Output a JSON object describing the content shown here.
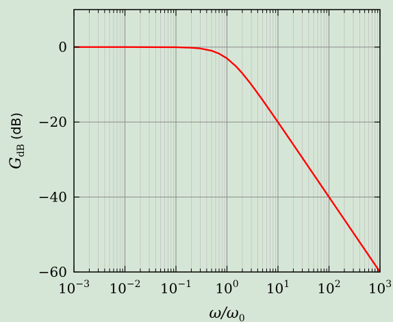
{
  "chart_data": {
    "type": "line",
    "title": "",
    "xlabel": {
      "main": "ω/ω",
      "sub": "0"
    },
    "ylabel": {
      "main": "G",
      "sub": "dB",
      "unit": "(dB)"
    },
    "xscale": "log",
    "xlim": [
      0.001,
      1000
    ],
    "ylim": [
      -60,
      10
    ],
    "grid": true,
    "legend": "none",
    "x_ticks": [
      {
        "value": 0.001,
        "base": "10",
        "exp": "−3"
      },
      {
        "value": 0.01,
        "base": "10",
        "exp": "−2"
      },
      {
        "value": 0.1,
        "base": "10",
        "exp": "−1"
      },
      {
        "value": 1,
        "base": "10",
        "exp": "0"
      },
      {
        "value": 10,
        "base": "10",
        "exp": "1"
      },
      {
        "value": 100,
        "base": "10",
        "exp": "2"
      },
      {
        "value": 1000,
        "base": "10",
        "exp": "3"
      }
    ],
    "y_ticks": [
      {
        "value": 0,
        "label": "0"
      },
      {
        "value": -20,
        "label": "−20"
      },
      {
        "value": -40,
        "label": "−40"
      },
      {
        "value": -60,
        "label": "−60"
      }
    ],
    "series": [
      {
        "color": "#ff0000",
        "x": [
          0.001,
          0.01,
          0.1,
          0.2,
          0.3,
          0.5,
          0.7,
          1,
          1.5,
          2,
          3,
          5,
          7,
          10,
          20,
          30,
          50,
          70,
          100,
          200,
          300,
          500,
          700,
          1000
        ],
        "y": [
          0,
          0,
          -0.04,
          -0.17,
          -0.37,
          -0.97,
          -1.74,
          -3.01,
          -5.12,
          -6.99,
          -10.0,
          -14.15,
          -16.99,
          -20.04,
          -26.02,
          -29.54,
          -33.98,
          -36.9,
          -40.0,
          -46.02,
          -49.54,
          -53.98,
          -56.9,
          -60.0
        ]
      }
    ]
  },
  "colors": {
    "background": "#d6e6d6",
    "major_grid": "#8a8a8a",
    "minor_grid": "#c2c2c2",
    "frame": "#000000"
  }
}
